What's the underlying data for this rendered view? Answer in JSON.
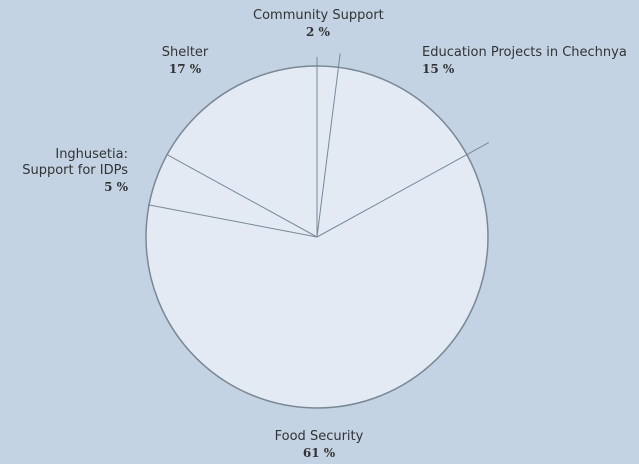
{
  "chart_data": {
    "type": "pie",
    "title": "",
    "slices": [
      {
        "label": "Community Support",
        "value": 2,
        "display": "2 %"
      },
      {
        "label": "Education Projects in Chechnya",
        "value": 15,
        "display": "15 %"
      },
      {
        "label": "Food Security",
        "value": 61,
        "display": "61 %"
      },
      {
        "label": "Inghusetia: Support for IDPs",
        "label_lines": [
          "Inghusetia:",
          "Support for IDPs"
        ],
        "value": 5,
        "display": "5 %"
      },
      {
        "label": "Shelter",
        "value": 17,
        "display": "17 %"
      }
    ],
    "colors": {
      "background": "#c3d3e3",
      "slice_fill": "#e3eaf3",
      "line": "#7a8896"
    }
  }
}
